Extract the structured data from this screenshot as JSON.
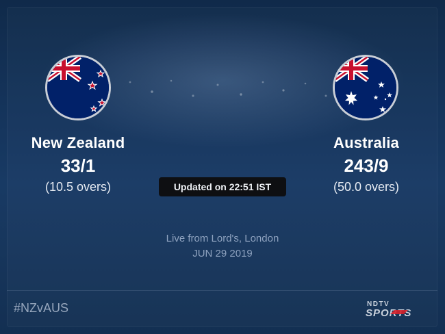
{
  "match": {
    "home": {
      "name": "New Zealand",
      "score": "33/1",
      "overs": "(10.5 overs)",
      "flag_icon": "new-zealand-flag-icon"
    },
    "away": {
      "name": "Australia",
      "score": "243/9",
      "overs": "(50.0 overs)",
      "flag_icon": "australia-flag-icon"
    },
    "updated": "Updated on 22:51 IST",
    "venue": "Live from Lord's, London",
    "date": "JUN 29 2019"
  },
  "footer": {
    "hashtag": "#NZvAUS",
    "logo_top": "NDTV",
    "logo_bottom": "SPORTS"
  },
  "colors": {
    "background": "#14335a",
    "flag_blue": "#012169",
    "flag_red": "#c8102e",
    "badge": "#0e0f12",
    "muted_text": "#8ea2bf"
  }
}
